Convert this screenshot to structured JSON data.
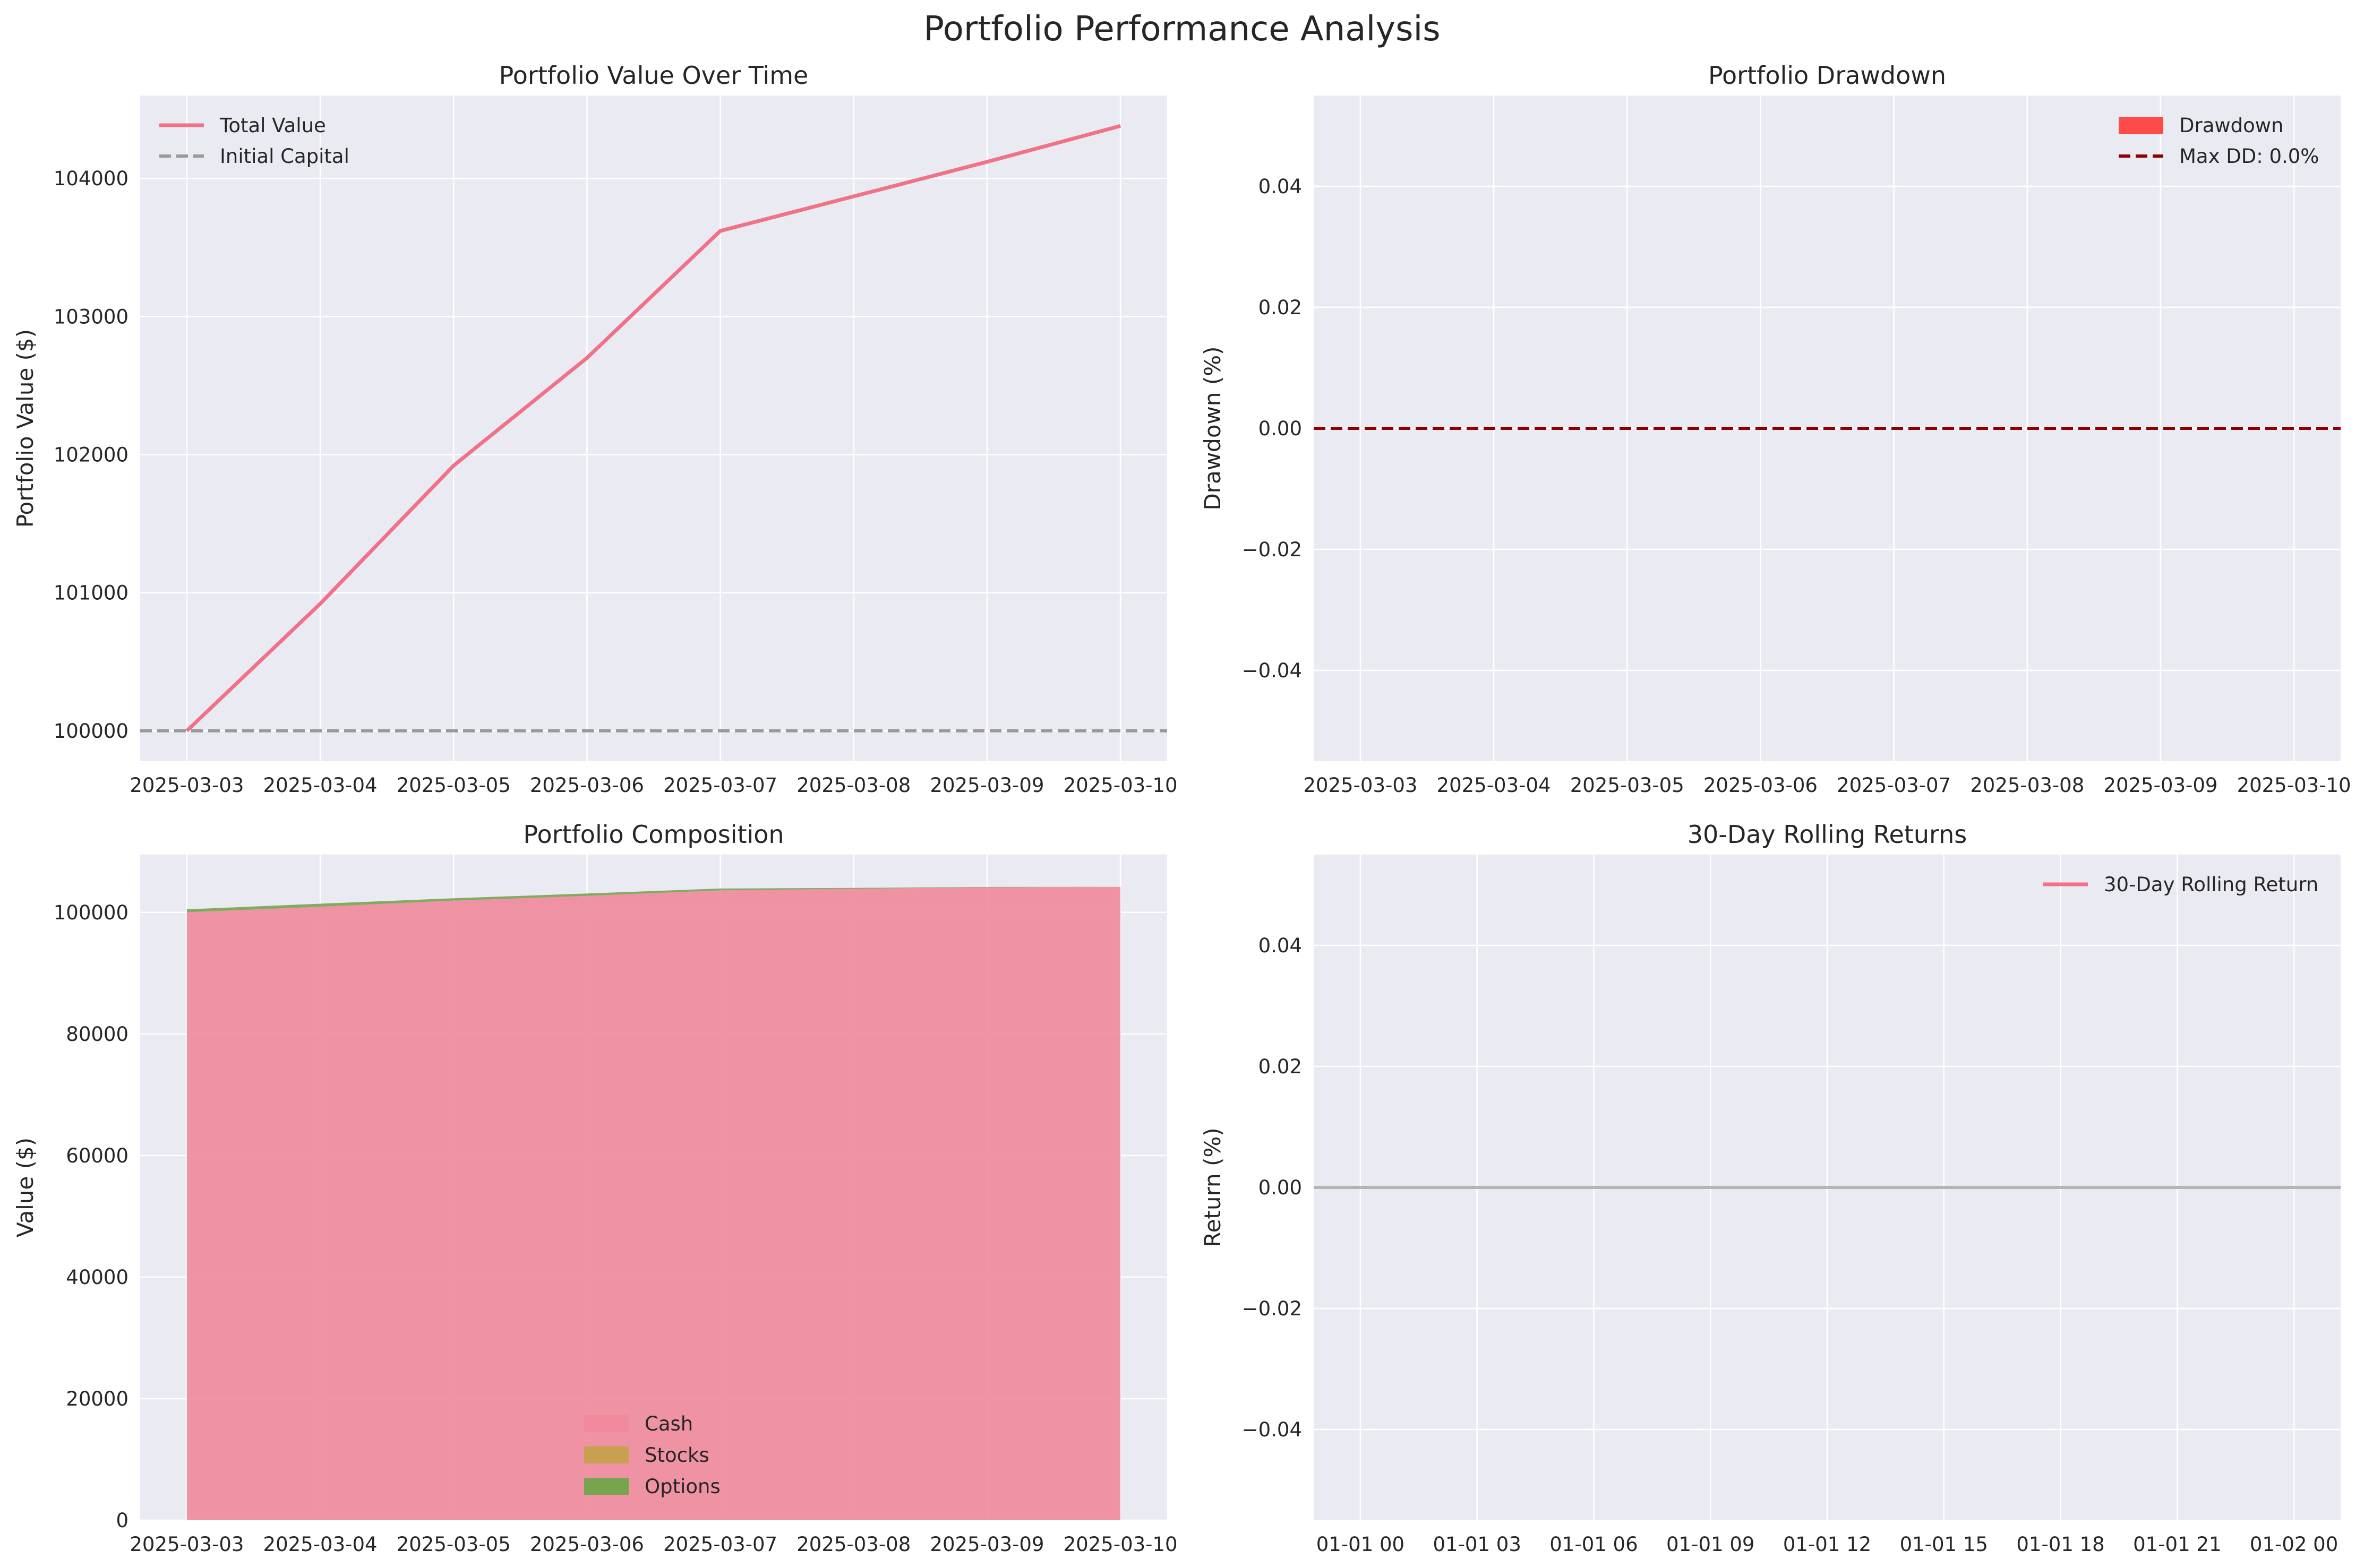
{
  "figure": {
    "title": "Portfolio Performance Analysis"
  },
  "chart_data": [
    {
      "id": "value",
      "type": "line",
      "title": "Portfolio Value Over Time",
      "xlabel": "",
      "ylabel": "Portfolio Value ($)",
      "x": [
        "2025-03-03",
        "2025-03-04",
        "2025-03-05",
        "2025-03-06",
        "2025-03-07",
        "2025-03-08",
        "2025-03-09",
        "2025-03-10"
      ],
      "xlim": [
        -0.35,
        7.35
      ],
      "ylim": [
        99780,
        104600
      ],
      "yticks": [
        100000,
        101000,
        102000,
        103000,
        104000
      ],
      "ytick_labels": [
        "100000",
        "101000",
        "102000",
        "103000",
        "104000"
      ],
      "series": [
        {
          "name": "Total Value",
          "color": "#f07286",
          "style": "solid",
          "values": [
            100000,
            100920,
            101920,
            102700,
            103620,
            103870,
            104120,
            104380
          ]
        }
      ],
      "hlines": [
        {
          "name": "Initial Capital",
          "value": 100000,
          "color": "#999999",
          "style": "dashed"
        }
      ],
      "legend": [
        "Total Value",
        "Initial Capital"
      ],
      "legend_loc": "upper-left"
    },
    {
      "id": "drawdown",
      "type": "area",
      "title": "Portfolio Drawdown",
      "xlabel": "",
      "ylabel": "Drawdown (%)",
      "x": [
        "2025-03-03",
        "2025-03-04",
        "2025-03-05",
        "2025-03-06",
        "2025-03-07",
        "2025-03-08",
        "2025-03-09",
        "2025-03-10"
      ],
      "xlim": [
        -0.35,
        7.35
      ],
      "ylim": [
        -0.055,
        0.055
      ],
      "yticks": [
        -0.04,
        -0.02,
        0.0,
        0.02,
        0.04
      ],
      "ytick_labels": [
        "−0.04",
        "−0.02",
        "0.00",
        "0.02",
        "0.04"
      ],
      "series": [
        {
          "name": "Drawdown",
          "color": "#ff4a4a",
          "values": [
            0,
            0,
            0,
            0,
            0,
            0,
            0,
            0
          ]
        }
      ],
      "hlines": [
        {
          "name": "Max DD: 0.0%",
          "value": 0.0,
          "color": "#8b0000",
          "style": "dashed"
        }
      ],
      "legend": [
        "Drawdown",
        "Max DD: 0.0%"
      ],
      "legend_loc": "upper-right"
    },
    {
      "id": "composition",
      "type": "area",
      "title": "Portfolio Composition",
      "xlabel": "",
      "ylabel": "Value ($)",
      "x": [
        "2025-03-03",
        "2025-03-04",
        "2025-03-05",
        "2025-03-06",
        "2025-03-07",
        "2025-03-08",
        "2025-03-09",
        "2025-03-10"
      ],
      "xlim": [
        -0.35,
        7.35
      ],
      "ylim": [
        0,
        109500
      ],
      "yticks": [
        0,
        20000,
        40000,
        60000,
        80000,
        100000
      ],
      "ytick_labels": [
        "0",
        "20000",
        "40000",
        "60000",
        "80000",
        "100000"
      ],
      "stacked": true,
      "series": [
        {
          "name": "Cash",
          "color": "#f0899b",
          "values": [
            100000,
            100920,
            101920,
            102700,
            103620,
            103870,
            104120,
            104200
          ]
        },
        {
          "name": "Stocks",
          "color": "#c9a050",
          "values": [
            0,
            0,
            0,
            0,
            0,
            0,
            0,
            0
          ]
        },
        {
          "name": "Options",
          "color": "#78a450",
          "values": [
            500,
            500,
            400,
            400,
            300,
            150,
            60,
            0
          ]
        }
      ],
      "legend": [
        "Cash",
        "Stocks",
        "Options"
      ],
      "legend_loc": "lower-center"
    },
    {
      "id": "rolling",
      "type": "line",
      "title": "30-Day Rolling Returns",
      "xlabel": "",
      "ylabel": "Return (%)",
      "x_hours": [
        0,
        3,
        6,
        9,
        12,
        15,
        18,
        21,
        24
      ],
      "xtick_labels": [
        "01-01 00",
        "01-01 03",
        "01-01 06",
        "01-01 09",
        "01-01 12",
        "01-01 15",
        "01-01 18",
        "01-01 21",
        "01-02 00"
      ],
      "xlim": [
        -1.2,
        25.2
      ],
      "ylim": [
        -0.055,
        0.055
      ],
      "yticks": [
        -0.04,
        -0.02,
        0.0,
        0.02,
        0.04
      ],
      "ytick_labels": [
        "−0.04",
        "−0.02",
        "0.00",
        "0.02",
        "0.04"
      ],
      "series": [
        {
          "name": "30-Day Rolling Return",
          "color": "#f07286",
          "values": []
        }
      ],
      "hlines": [
        {
          "name": "",
          "value": 0.0,
          "color": "#b4b4b4",
          "style": "solid"
        }
      ],
      "legend": [
        "30-Day Rolling Return"
      ],
      "legend_loc": "upper-right"
    }
  ]
}
